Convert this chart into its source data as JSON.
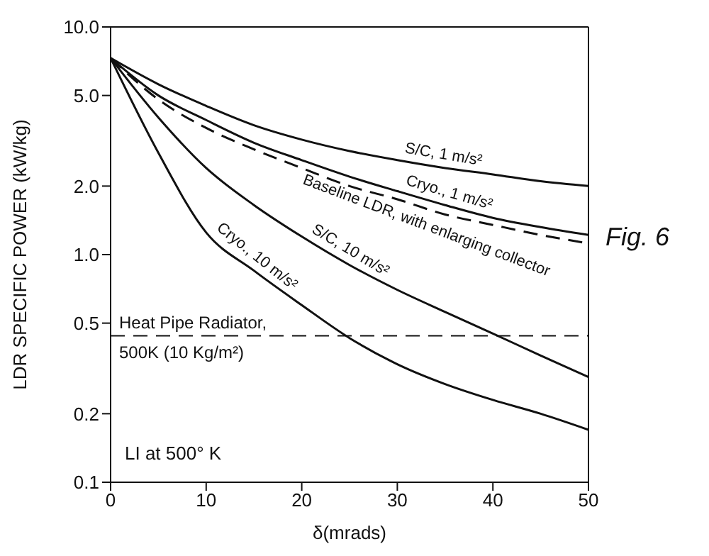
{
  "chart_data": {
    "type": "line",
    "xlabel": "δ(mrads)",
    "ylabel": "LDR SPECIFIC POWER (kW/kg)",
    "x": [
      0,
      5,
      10,
      15,
      20,
      25,
      30,
      35,
      40,
      45,
      50
    ],
    "series": [
      {
        "name": "S/C, 1 m/s²",
        "color": "#111111",
        "values": [
          7.3,
          5.6,
          4.5,
          3.7,
          3.2,
          2.85,
          2.6,
          2.4,
          2.25,
          2.1,
          2.0
        ]
      },
      {
        "name": "Cryo., 1 m/s²",
        "color": "#111111",
        "values": [
          7.3,
          5.0,
          3.9,
          3.1,
          2.6,
          2.2,
          1.9,
          1.65,
          1.45,
          1.32,
          1.22
        ]
      },
      {
        "name": "Baseline LDR, with enlarging collector",
        "color": "#111111",
        "line_style": "dashed",
        "values": [
          7.3,
          4.8,
          3.6,
          2.9,
          2.4,
          2.0,
          1.75,
          1.5,
          1.35,
          1.22,
          1.12
        ]
      },
      {
        "name": "S/C, 10 m/s²",
        "color": "#111111",
        "values": [
          7.3,
          4.0,
          2.4,
          1.65,
          1.2,
          0.9,
          0.7,
          0.56,
          0.45,
          0.36,
          0.29
        ]
      },
      {
        "name": "Cryo., 10 m/s²",
        "color": "#111111",
        "values": [
          7.3,
          2.8,
          1.25,
          0.85,
          0.6,
          0.43,
          0.33,
          0.27,
          0.23,
          0.2,
          0.17
        ]
      }
    ],
    "log": "y",
    "xlim": [
      0,
      50
    ],
    "xticks": [
      0,
      10,
      20,
      30,
      40,
      50
    ],
    "ylim": [
      0.1,
      10
    ],
    "yticks": [
      {
        "value": 0.1,
        "label": "0.1"
      },
      {
        "value": 0.2,
        "label": "0.2"
      },
      {
        "value": 0.5,
        "label": "0.5"
      },
      {
        "value": 1,
        "label": "1.0"
      },
      {
        "value": 2,
        "label": "2.0"
      },
      {
        "value": 5,
        "label": "5.0"
      },
      {
        "value": 10,
        "label": "10.0"
      }
    ],
    "ref_lines": [
      {
        "axis": "y",
        "value": 0.44,
        "label": "Heat Pipe Radiator,\n500K (10 Kg/m²)",
        "line_style": "dashed",
        "color": "#111111"
      }
    ],
    "annotations": [
      "LI at 500° K",
      "Fig. 6"
    ],
    "grid": false,
    "legend": false,
    "marker": "none",
    "line_style": "solid"
  }
}
